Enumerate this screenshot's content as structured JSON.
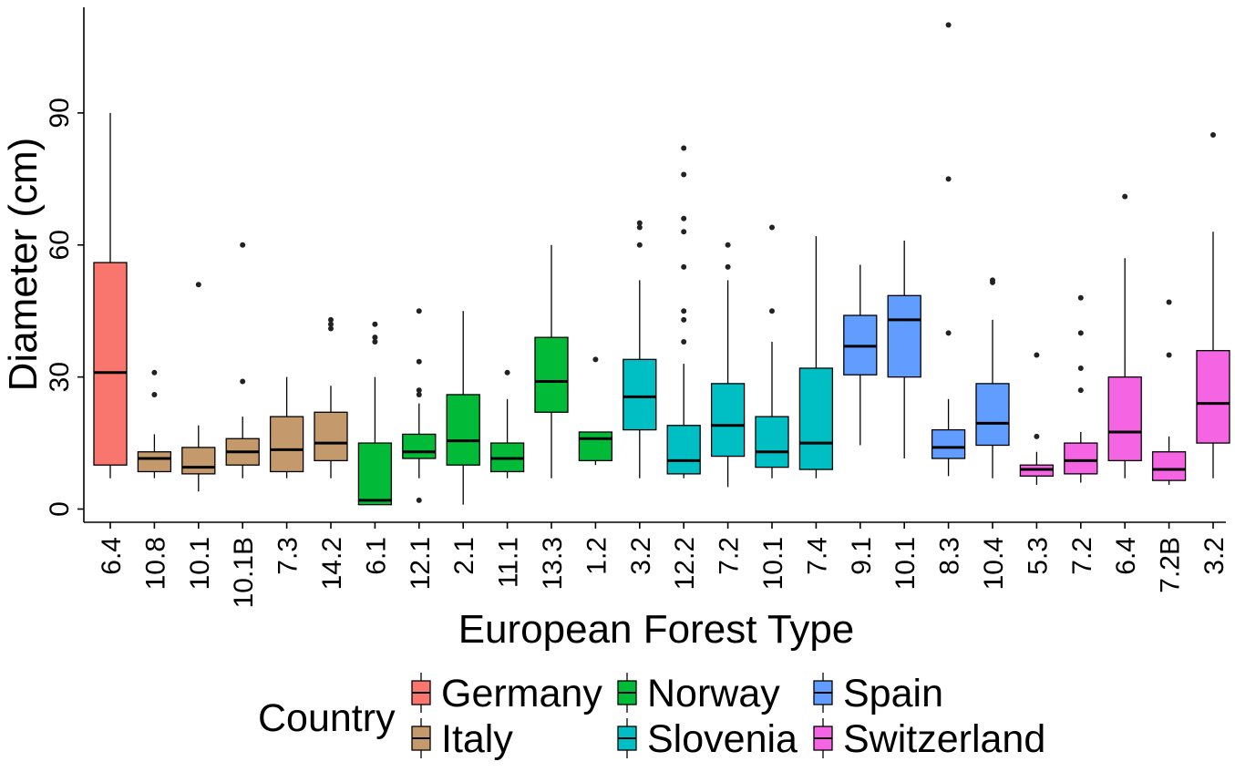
{
  "chart_data": {
    "type": "boxplot",
    "xlabel": "European Forest Type",
    "ylabel": "Diameter (cm)",
    "ylim": [
      -3,
      114
    ],
    "yticks": [
      0,
      30,
      60,
      90
    ],
    "grid": false,
    "legend": {
      "title": "Country",
      "placement": "bottom",
      "entries": [
        {
          "name": "Germany",
          "color": "#F8766D"
        },
        {
          "name": "Italy",
          "color": "#C49A6C"
        },
        {
          "name": "Norway",
          "color": "#00BA38"
        },
        {
          "name": "Slovenia",
          "color": "#00BFC4"
        },
        {
          "name": "Spain",
          "color": "#619CFF"
        },
        {
          "name": "Switzerland",
          "color": "#F564E3"
        }
      ]
    },
    "categories": [
      "6.4",
      "10.8",
      "10.1",
      "10.1B",
      "7.3",
      "14.2",
      "6.1",
      "12.1",
      "2.1",
      "11.1",
      "13.3",
      "1.2",
      "3.2",
      "12.2",
      "7.2",
      "10.1",
      "7.4",
      "9.1",
      "10.1",
      "8.3",
      "10.4",
      "5.3",
      "7.2",
      "6.4",
      "7.2B",
      "3.2"
    ],
    "boxes": [
      {
        "label": "6.4",
        "country": "Germany",
        "whisker_low": 7,
        "q1": 10,
        "median": 31,
        "q3": 56,
        "whisker_high": 90,
        "outliers": []
      },
      {
        "label": "10.8",
        "country": "Italy",
        "whisker_low": 7,
        "q1": 8.5,
        "median": 11.5,
        "q3": 13,
        "whisker_high": 17,
        "outliers": [
          26,
          31
        ]
      },
      {
        "label": "10.1",
        "country": "Italy",
        "whisker_low": 4,
        "q1": 8,
        "median": 9.5,
        "q3": 14,
        "whisker_high": 19,
        "outliers": [
          51
        ]
      },
      {
        "label": "10.1B",
        "country": "Italy",
        "whisker_low": 7,
        "q1": 10,
        "median": 13,
        "q3": 16,
        "whisker_high": 21,
        "outliers": [
          29,
          60
        ]
      },
      {
        "label": "7.3",
        "country": "Italy",
        "whisker_low": 7,
        "q1": 8.5,
        "median": 13.5,
        "q3": 21,
        "whisker_high": 30,
        "outliers": []
      },
      {
        "label": "14.2",
        "country": "Italy",
        "whisker_low": 7,
        "q1": 11,
        "median": 15,
        "q3": 22,
        "whisker_high": 28,
        "outliers": [
          41,
          42,
          43
        ]
      },
      {
        "label": "6.1",
        "country": "Norway",
        "whisker_low": 1,
        "q1": 1,
        "median": 2,
        "q3": 15,
        "whisker_high": 30,
        "outliers": [
          38,
          39,
          42
        ]
      },
      {
        "label": "12.1",
        "country": "Norway",
        "whisker_low": 7,
        "q1": 11.5,
        "median": 13,
        "q3": 17,
        "whisker_high": 24,
        "outliers": [
          2,
          26,
          27,
          33.5,
          45
        ]
      },
      {
        "label": "2.1",
        "country": "Norway",
        "whisker_low": 1,
        "q1": 10,
        "median": 15.5,
        "q3": 26,
        "whisker_high": 45,
        "outliers": []
      },
      {
        "label": "11.1",
        "country": "Norway",
        "whisker_low": 7,
        "q1": 8.5,
        "median": 11.5,
        "q3": 15,
        "whisker_high": 25,
        "outliers": [
          31
        ]
      },
      {
        "label": "13.3",
        "country": "Norway",
        "whisker_low": 7,
        "q1": 22,
        "median": 29,
        "q3": 39,
        "whisker_high": 60,
        "outliers": []
      },
      {
        "label": "1.2",
        "country": "Norway",
        "whisker_low": 10,
        "q1": 11,
        "median": 16,
        "q3": 17.5,
        "whisker_high": 17.5,
        "outliers": [
          34
        ]
      },
      {
        "label": "3.2",
        "country": "Slovenia",
        "whisker_low": 7,
        "q1": 18,
        "median": 25.5,
        "q3": 34,
        "whisker_high": 52,
        "outliers": [
          60,
          64,
          65
        ]
      },
      {
        "label": "12.2",
        "country": "Slovenia",
        "whisker_low": 7,
        "q1": 8,
        "median": 11,
        "q3": 19,
        "whisker_high": 33,
        "outliers": [
          38,
          43,
          45,
          55,
          63,
          66,
          76,
          82
        ]
      },
      {
        "label": "7.2",
        "country": "Slovenia",
        "whisker_low": 5,
        "q1": 12,
        "median": 19,
        "q3": 28.5,
        "whisker_high": 52,
        "outliers": [
          55,
          60
        ]
      },
      {
        "label": "10.1",
        "country": "Slovenia",
        "whisker_low": 7,
        "q1": 9.5,
        "median": 13,
        "q3": 21,
        "whisker_high": 38,
        "outliers": [
          45,
          64
        ]
      },
      {
        "label": "7.4",
        "country": "Slovenia",
        "whisker_low": 7,
        "q1": 9,
        "median": 15,
        "q3": 32,
        "whisker_high": 62,
        "outliers": []
      },
      {
        "label": "9.1",
        "country": "Spain",
        "whisker_low": 14.5,
        "q1": 30.5,
        "median": 37,
        "q3": 44,
        "whisker_high": 55.5,
        "outliers": []
      },
      {
        "label": "10.1",
        "country": "Spain",
        "whisker_low": 11.5,
        "q1": 30,
        "median": 43,
        "q3": 48.5,
        "whisker_high": 61,
        "outliers": []
      },
      {
        "label": "8.3",
        "country": "Spain",
        "whisker_low": 7.5,
        "q1": 11.5,
        "median": 14,
        "q3": 18,
        "whisker_high": 25,
        "outliers": [
          40,
          75,
          110
        ]
      },
      {
        "label": "10.4",
        "country": "Spain",
        "whisker_low": 7,
        "q1": 14.5,
        "median": 19.5,
        "q3": 28.5,
        "whisker_high": 43,
        "outliers": [
          51.5,
          52
        ]
      },
      {
        "label": "5.3",
        "country": "Switzerland",
        "whisker_low": 5.5,
        "q1": 7.5,
        "median": 9,
        "q3": 10,
        "whisker_high": 13,
        "outliers": [
          16.5,
          35
        ]
      },
      {
        "label": "7.2",
        "country": "Switzerland",
        "whisker_low": 6,
        "q1": 8,
        "median": 11,
        "q3": 15,
        "whisker_high": 17.5,
        "outliers": [
          27,
          32,
          40,
          48
        ]
      },
      {
        "label": "6.4",
        "country": "Switzerland",
        "whisker_low": 7,
        "q1": 11,
        "median": 17.5,
        "q3": 30,
        "whisker_high": 57,
        "outliers": [
          71
        ]
      },
      {
        "label": "7.2B",
        "country": "Switzerland",
        "whisker_low": 5.5,
        "q1": 6.5,
        "median": 9,
        "q3": 13,
        "whisker_high": 16.5,
        "outliers": [
          35,
          47
        ]
      },
      {
        "label": "3.2",
        "country": "Switzerland",
        "whisker_low": 7,
        "q1": 15,
        "median": 24,
        "q3": 36,
        "whisker_high": 63,
        "outliers": [
          85
        ]
      }
    ]
  }
}
